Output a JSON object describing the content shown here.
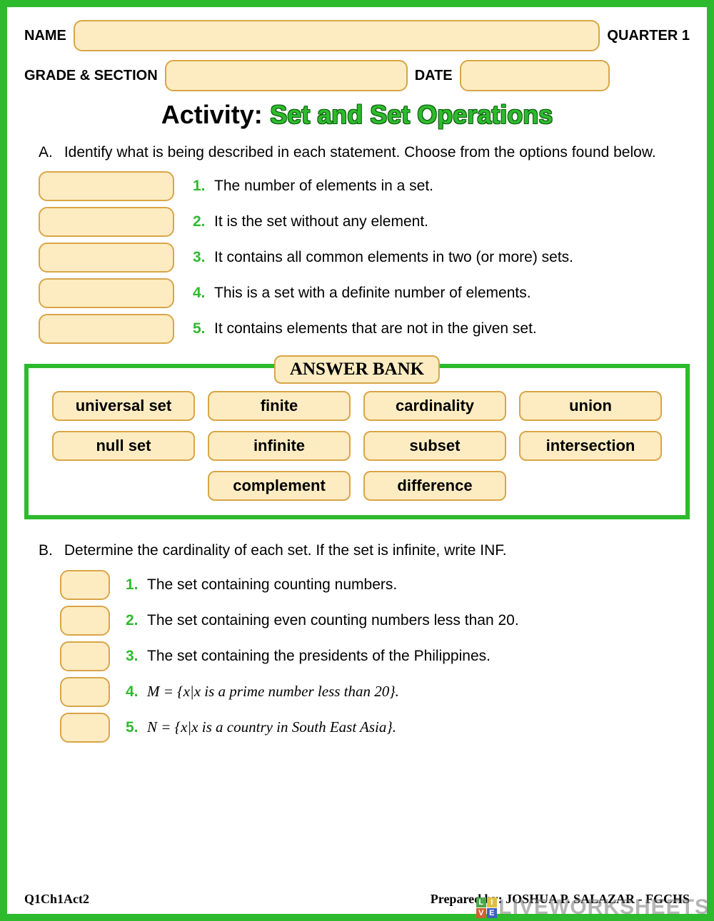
{
  "colors": {
    "border_green": "#2dbb2d",
    "field_bg": "#fdecc2",
    "field_border": "#d9a547",
    "text": "#000000",
    "number_green": "#2dbb2d",
    "title_green": "#2dbb2d",
    "title_outline": "#0a5a0a"
  },
  "header": {
    "name_label": "NAME",
    "quarter_label": "QUARTER 1",
    "grade_label": "GRADE & SECTION",
    "date_label": "DATE"
  },
  "title": {
    "prefix": "Activity:",
    "main": "Set and Set Operations"
  },
  "sectionA": {
    "letter": "A.",
    "intro": "Identify what is being described in each statement. Choose from the options found below.",
    "items": [
      {
        "n": "1.",
        "text": "The number of elements in a set."
      },
      {
        "n": "2.",
        "text": "It is the set without any element."
      },
      {
        "n": "3.",
        "text": "It contains all common elements in two (or more) sets."
      },
      {
        "n": "4.",
        "text": "This is a set with a definite number of elements."
      },
      {
        "n": "5.",
        "text": "It contains elements that are not in the given set."
      }
    ]
  },
  "bank": {
    "title": "ANSWER BANK",
    "items": [
      "universal set",
      "finite",
      "cardinality",
      "union",
      "null set",
      "infinite",
      "subset",
      "intersection",
      "complement",
      "difference"
    ]
  },
  "sectionB": {
    "letter": "B.",
    "intro": "Determine the cardinality of each set. If the set is infinite, write INF.",
    "items": [
      {
        "n": "1.",
        "text": "The set containing counting numbers."
      },
      {
        "n": "2.",
        "text": "The set containing even counting numbers less than 20."
      },
      {
        "n": "3.",
        "text": "The set containing the presidents of the Philippines."
      },
      {
        "n": "4.",
        "text": "M = {x|x is a prime number less than 20}."
      },
      {
        "n": "5.",
        "text": "N = {x|x is a country in South East Asia}."
      }
    ]
  },
  "footer": {
    "left": "Q1Ch1Act2",
    "right": "Prepared by: JOSHUA P. SALAZAR - FGCHS"
  },
  "watermark": {
    "text": "LIVEWORKSHEETS",
    "logo_letters": [
      "L",
      "I",
      "V",
      "E"
    ],
    "logo_colors": [
      "#4aa84a",
      "#e0c040",
      "#d06030",
      "#4060c0"
    ]
  }
}
